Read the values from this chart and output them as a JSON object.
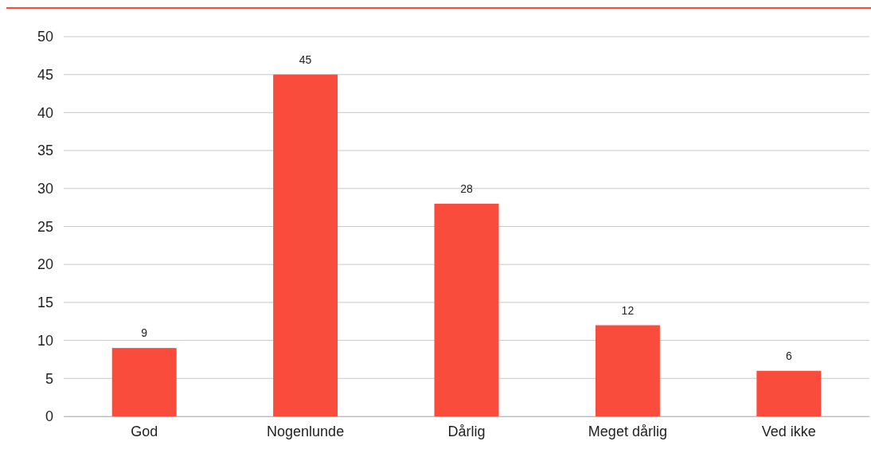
{
  "chart_data": {
    "type": "bar",
    "categories": [
      "God",
      "Nogenlunde",
      "Dårlig",
      "Meget dårlig",
      "Ved ikke"
    ],
    "values": [
      9,
      45,
      28,
      12,
      6
    ],
    "color": "#f94c3c",
    "ylim": [
      0,
      50
    ],
    "yticks": [
      0,
      5,
      10,
      15,
      20,
      25,
      30,
      35,
      40,
      45,
      50
    ],
    "grid": "y",
    "data_labels": true
  }
}
